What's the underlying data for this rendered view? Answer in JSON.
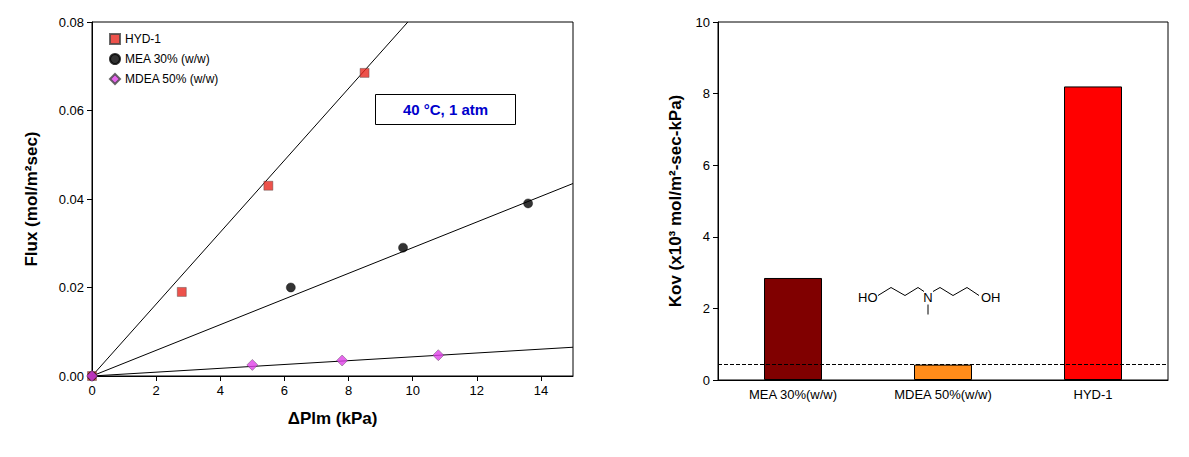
{
  "chart_data": [
    {
      "type": "scatter",
      "xlabel": "ΔPlm (kPa)",
      "ylabel": "Flux (mol/m²sec)",
      "xlim": [
        0,
        15
      ],
      "xticks": [
        0,
        2,
        4,
        6,
        8,
        10,
        12,
        14
      ],
      "ylim": [
        0,
        0.08
      ],
      "yticks": [
        {
          "value": 0,
          "label": "0.00"
        },
        {
          "value": 0.02,
          "label": "0.02"
        },
        {
          "value": 0.04,
          "label": "0.04"
        },
        {
          "value": 0.06,
          "label": "0.06"
        },
        {
          "value": 0.08,
          "label": "0.08"
        }
      ],
      "grid": false,
      "legend": "upper left",
      "annotations": [
        "40 °C, 1 atm"
      ],
      "series": [
        {
          "name": "HYD-1",
          "color": "#e8271e",
          "marker": "square",
          "x": [
            0,
            2.8,
            5.5,
            8.5
          ],
          "values": [
            0,
            0.019,
            0.043,
            0.0685
          ],
          "fit": {
            "x": [
              0,
              9.85
            ],
            "values": [
              0,
              0.08
            ]
          }
        },
        {
          "name": "MEA 30% (w/w)",
          "color": "#000000",
          "marker": "circle",
          "x": [
            0,
            6.2,
            9.7,
            13.6
          ],
          "values": [
            0,
            0.02,
            0.029,
            0.039
          ],
          "fit": {
            "x": [
              0,
              15
            ],
            "values": [
              0,
              0.0435
            ]
          }
        },
        {
          "name": "MDEA 50% (w/w)",
          "color": "#e040e8",
          "marker": "diamond",
          "x": [
            0,
            5.0,
            7.8,
            10.8
          ],
          "values": [
            0,
            0.0025,
            0.0035,
            0.0047
          ],
          "fit": {
            "x": [
              0,
              15
            ],
            "values": [
              0,
              0.0065
            ]
          }
        }
      ]
    },
    {
      "type": "bar",
      "ylabel": "Kov (x10³ mol/m²-sec-kPa)",
      "categories": [
        "MEA 30%(w/w)",
        "MDEA 50%(w/w)",
        "HYD-1"
      ],
      "values": [
        2.85,
        0.43,
        8.2
      ],
      "colors": [
        "#800000",
        "#ff8c1a",
        "#ff0000"
      ],
      "ylim": [
        0,
        10
      ],
      "yticks": [
        0,
        2,
        4,
        6,
        8,
        10
      ],
      "grid": false,
      "reference_line": 0.43,
      "annotations": [
        "HO",
        "N",
        "OH"
      ]
    }
  ]
}
